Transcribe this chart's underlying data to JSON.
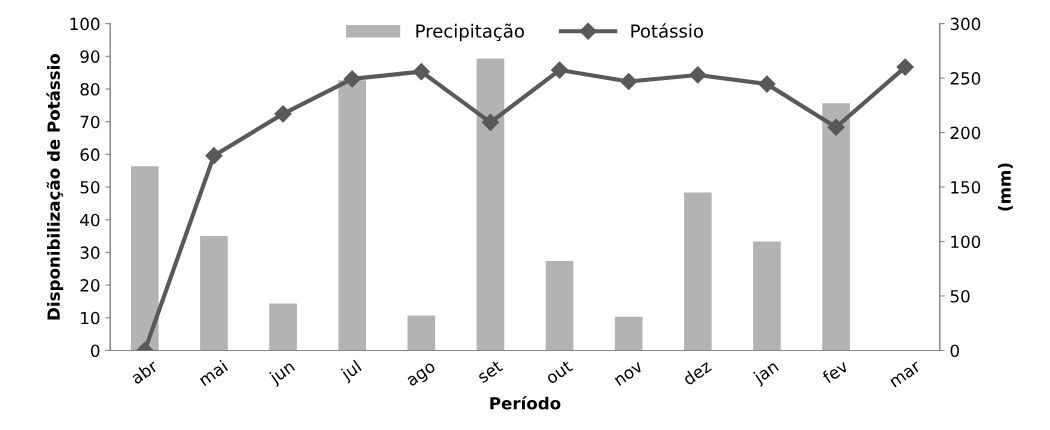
{
  "chart_data": {
    "type": "bar",
    "xlabel": "Período",
    "ylabel": "Disponibilização de Potássio",
    "y2label": "(mm)",
    "categories": [
      "abr",
      "mai",
      "jun",
      "jul",
      "ago",
      "set",
      "out",
      "nov",
      "dez",
      "jan",
      "fev",
      "mar"
    ],
    "series": [
      {
        "name": "Precipitação",
        "axis": "y2",
        "color": "#b3b3b3",
        "values": [
          169,
          105,
          43,
          248,
          32,
          268,
          82,
          31,
          145,
          100,
          227,
          0
        ]
      },
      {
        "name": "Potássio",
        "type": "line",
        "color": "#595959",
        "marker": "diamond",
        "values": [
          0,
          59.6,
          72.4,
          83.1,
          85.3,
          69.8,
          85.8,
          82.3,
          84.3,
          81.5,
          68.3,
          86.7
        ]
      }
    ],
    "ylim": [
      0,
      100
    ],
    "yticks": [
      0,
      10,
      20,
      30,
      40,
      50,
      60,
      70,
      80,
      90,
      100
    ],
    "y2lim": [
      0,
      300
    ],
    "y2ticks": [
      0,
      50,
      100,
      150,
      200,
      250,
      300
    ],
    "grid": false,
    "legend": "top"
  }
}
